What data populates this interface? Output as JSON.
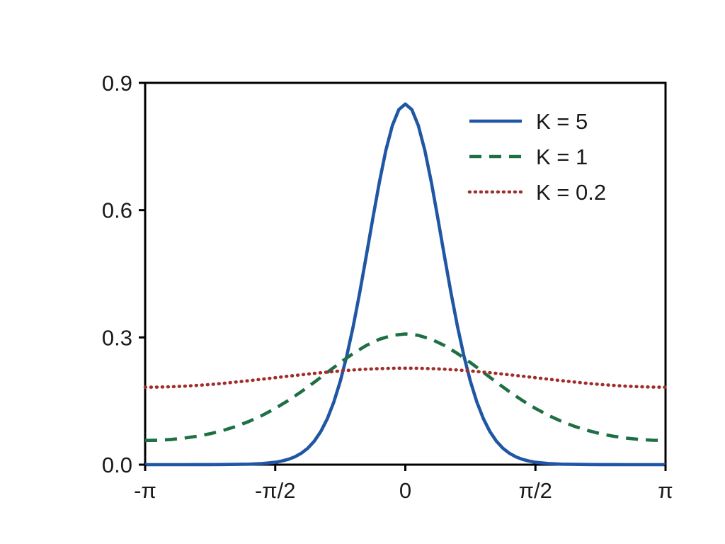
{
  "figure": {
    "background": "#ffffff",
    "frame_color": "#000000",
    "tick_color": "#000000",
    "label_color": "#1a1a1a"
  },
  "chart_data": {
    "type": "line",
    "title": "",
    "xlabel": "",
    "ylabel": "",
    "x_unit": "radians (multiples of pi)",
    "xlim_pi": [
      -1,
      1
    ],
    "ylim": [
      0,
      0.9
    ],
    "grid": false,
    "x_ticks": [
      {
        "pos": -1,
        "label": "-π"
      },
      {
        "pos": -0.5,
        "label": "-π/2"
      },
      {
        "pos": 0,
        "label": "0"
      },
      {
        "pos": 0.5,
        "label": "π/2"
      },
      {
        "pos": 1,
        "label": "π"
      }
    ],
    "y_ticks": [
      {
        "pos": 0.0,
        "label": "0.0"
      },
      {
        "pos": 0.3,
        "label": "0.3"
      },
      {
        "pos": 0.6,
        "label": "0.6"
      },
      {
        "pos": 0.9,
        "label": "0.9"
      }
    ],
    "legend": {
      "position": "upper-right-inside",
      "frame": false,
      "entries": [
        "K = 5",
        "K = 1",
        "K = 0.2"
      ]
    },
    "series": [
      {
        "name": "K = 5",
        "k": 5,
        "color": "#2156a5",
        "style": "solid",
        "peak_y": 0.85,
        "x_pi": [
          -1,
          -0.95,
          -0.9,
          -0.85,
          -0.8,
          -0.75,
          -0.7,
          -0.65,
          -0.6,
          -0.55,
          -0.5,
          -0.475,
          -0.45,
          -0.425,
          -0.4,
          -0.375,
          -0.35,
          -0.325,
          -0.3,
          -0.275,
          -0.25,
          -0.225,
          -0.2,
          -0.175,
          -0.15,
          -0.125,
          -0.1,
          -0.075,
          -0.05,
          -0.025,
          0,
          0.025,
          0.05,
          0.075,
          0.1,
          0.125,
          0.15,
          0.175,
          0.2,
          0.225,
          0.25,
          0.275,
          0.3,
          0.325,
          0.35,
          0.375,
          0.4,
          0.425,
          0.45,
          0.475,
          0.5,
          0.55,
          0.6,
          0.65,
          0.7,
          0.75,
          0.8,
          0.85,
          0.9,
          0.95,
          1
        ],
        "y": [
          4e-05,
          4e-05,
          5e-05,
          7e-05,
          0.0001,
          0.00017,
          0.0003,
          0.00059,
          0.00122,
          0.00262,
          0.00573,
          0.00848,
          0.01252,
          0.0184,
          0.02685,
          0.03881,
          0.05543,
          0.07808,
          0.10822,
          0.14729,
          0.19651,
          0.25651,
          0.32711,
          0.40682,
          0.49287,
          0.58093,
          0.66545,
          0.74029,
          0.79922,
          0.83697,
          0.85,
          0.83697,
          0.79922,
          0.74029,
          0.66545,
          0.58093,
          0.49287,
          0.40682,
          0.32711,
          0.25651,
          0.19651,
          0.14729,
          0.10822,
          0.07808,
          0.05543,
          0.03881,
          0.02685,
          0.0184,
          0.01252,
          0.00848,
          0.00573,
          0.00262,
          0.00122,
          0.00059,
          0.0003,
          0.00017,
          0.0001,
          7e-05,
          5e-05,
          4e-05,
          4e-05
        ]
      },
      {
        "name": "K = 1",
        "k": 1,
        "color": "#1e7044",
        "style": "dashed",
        "peak_y": 0.308,
        "x_pi": [
          -1,
          -0.95,
          -0.9,
          -0.85,
          -0.8,
          -0.75,
          -0.7,
          -0.65,
          -0.6,
          -0.55,
          -0.5,
          -0.45,
          -0.4,
          -0.35,
          -0.3,
          -0.25,
          -0.2,
          -0.15,
          -0.1,
          -0.05,
          0,
          0.05,
          0.1,
          0.15,
          0.2,
          0.25,
          0.3,
          0.35,
          0.4,
          0.45,
          0.5,
          0.55,
          0.6,
          0.65,
          0.7,
          0.75,
          0.8,
          0.85,
          0.9,
          0.95,
          1
        ],
        "y": [
          0.05705,
          0.05765,
          0.05946,
          0.06255,
          0.06702,
          0.07304,
          0.08077,
          0.09041,
          0.10216,
          0.11619,
          0.13256,
          0.15126,
          0.17202,
          0.19438,
          0.2176,
          0.24062,
          0.26218,
          0.28097,
          0.29556,
          0.30483,
          0.308,
          0.30483,
          0.29556,
          0.28097,
          0.26218,
          0.24062,
          0.2176,
          0.19438,
          0.17202,
          0.15126,
          0.13256,
          0.11619,
          0.10216,
          0.09041,
          0.08077,
          0.07304,
          0.06702,
          0.06255,
          0.05946,
          0.05765,
          0.05705
        ]
      },
      {
        "name": "K = 0.2",
        "k": 0.2,
        "color": "#a12c2c",
        "style": "dotted",
        "peak_y": 0.2275,
        "x_pi": [
          -1,
          -0.95,
          -0.9,
          -0.85,
          -0.8,
          -0.75,
          -0.7,
          -0.65,
          -0.6,
          -0.55,
          -0.5,
          -0.45,
          -0.4,
          -0.35,
          -0.3,
          -0.25,
          -0.2,
          -0.15,
          -0.1,
          -0.05,
          0,
          0.05,
          0.1,
          0.15,
          0.2,
          0.25,
          0.3,
          0.35,
          0.4,
          0.45,
          0.5,
          0.55,
          0.6,
          0.65,
          0.7,
          0.75,
          0.8,
          0.85,
          0.9,
          0.95,
          1
        ],
        "y": [
          0.1825,
          0.18278,
          0.1836,
          0.18495,
          0.1868,
          0.18909,
          0.19177,
          0.19479,
          0.19805,
          0.20148,
          0.205,
          0.20852,
          0.21195,
          0.21521,
          0.21823,
          0.22091,
          0.2232,
          0.22505,
          0.2264,
          0.22722,
          0.2275,
          0.22722,
          0.2264,
          0.22505,
          0.2232,
          0.22091,
          0.21823,
          0.21521,
          0.21195,
          0.20852,
          0.205,
          0.20148,
          0.19805,
          0.19479,
          0.19177,
          0.18909,
          0.1868,
          0.18495,
          0.1836,
          0.18278,
          0.1825
        ]
      }
    ]
  }
}
